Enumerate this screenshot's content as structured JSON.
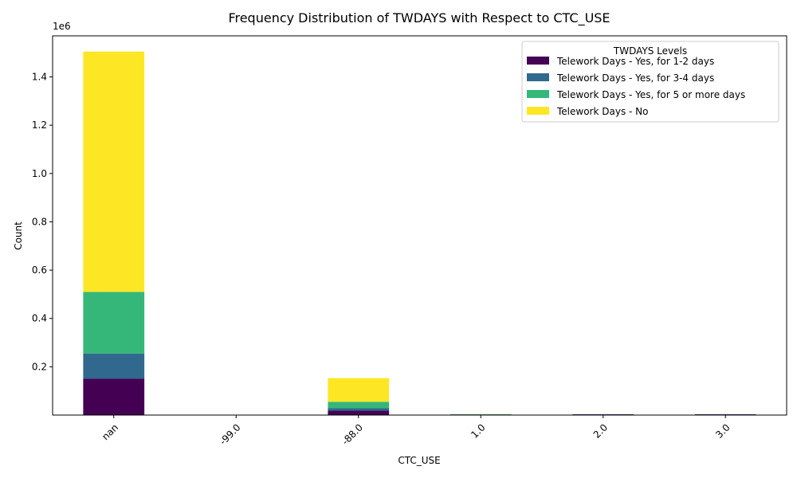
{
  "chart_data": {
    "type": "bar",
    "stacked": true,
    "title": "Frequency Distribution of TWDAYS with Respect to CTC_USE",
    "xlabel": "CTC_USE",
    "ylabel": "Count",
    "y_offset_label": "1e6",
    "ylim": [
      0,
      1.57
    ],
    "y_ticks": [
      "0.2",
      "0.4",
      "0.6",
      "0.8",
      "1.0",
      "1.2",
      "1.4"
    ],
    "y_tick_values": [
      0.2,
      0.4,
      0.6,
      0.8,
      1.0,
      1.2,
      1.4
    ],
    "categories": [
      "nan",
      "-99.0",
      "-88.0",
      "1.0",
      "2.0",
      "3.0"
    ],
    "legend_title": "TWDAYS Levels",
    "legend_position": "top-right",
    "grid": false,
    "series": [
      {
        "name": "Telework Days - Yes, for 1-2 days",
        "color": "#440154",
        "values": [
          0.15,
          0.0,
          0.018,
          0.002,
          0.003,
          0.003
        ]
      },
      {
        "name": "Telework Days - Yes, for 3-4 days",
        "color": "#31688e",
        "values": [
          0.105,
          0.0,
          0.01,
          0.001,
          0.0005,
          0.0005
        ]
      },
      {
        "name": "Telework Days - Yes, for 5 or more days",
        "color": "#35b779",
        "values": [
          0.255,
          0.0,
          0.027,
          0.0005,
          0.0003,
          0.0003
        ]
      },
      {
        "name": "Telework Days - No",
        "color": "#fde725",
        "values": [
          0.995,
          0.0,
          0.098,
          0.0005,
          0.0002,
          0.0002
        ]
      }
    ]
  }
}
